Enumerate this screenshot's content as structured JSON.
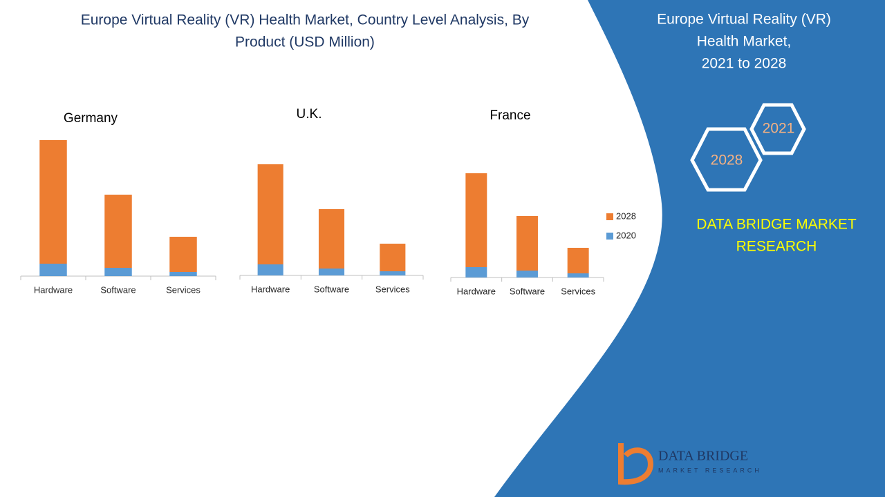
{
  "header": {
    "title_lines": [
      "Europe Virtual Reality (VR) Health Market, Country Level Analysis, By",
      "Product (USD Million)"
    ]
  },
  "sidebar": {
    "title_lines": [
      "Europe Virtual Reality (VR)",
      "Health Market,",
      "2021 to 2028"
    ],
    "hex_top": "2021",
    "hex_bottom": "2028",
    "brand_lines": [
      "DATA BRIDGE MARKET",
      "RESEARCH"
    ],
    "logo_name": "DATA BRIDGE",
    "logo_tagline": "MARKET RESEARCH"
  },
  "chart_data": [
    {
      "type": "bar",
      "stacked": true,
      "title": "Germany",
      "categories": [
        "Hardware",
        "Software",
        "Services"
      ],
      "series": [
        {
          "color": "#5b9bd5",
          "values": [
            18,
            12,
            6
          ]
        },
        {
          "color": "#ed7d31",
          "values": [
            179,
            106,
            51
          ]
        }
      ]
    },
    {
      "type": "bar",
      "stacked": true,
      "title": "U.K.",
      "categories": [
        "Hardware",
        "Software",
        "Services"
      ],
      "series": [
        {
          "color": "#5b9bd5",
          "values": [
            16,
            10,
            6
          ]
        },
        {
          "color": "#ed7d31",
          "values": [
            145,
            86,
            40
          ]
        }
      ]
    },
    {
      "type": "bar",
      "stacked": true,
      "title": "France",
      "categories": [
        "Hardware",
        "Software",
        "Services"
      ],
      "legend": "right",
      "series": [
        {
          "name": "2020",
          "color": "#5b9bd5",
          "values": [
            15,
            10,
            6
          ]
        },
        {
          "name": "2028",
          "color": "#ed7d31",
          "values": [
            136,
            79,
            37
          ]
        }
      ]
    }
  ]
}
